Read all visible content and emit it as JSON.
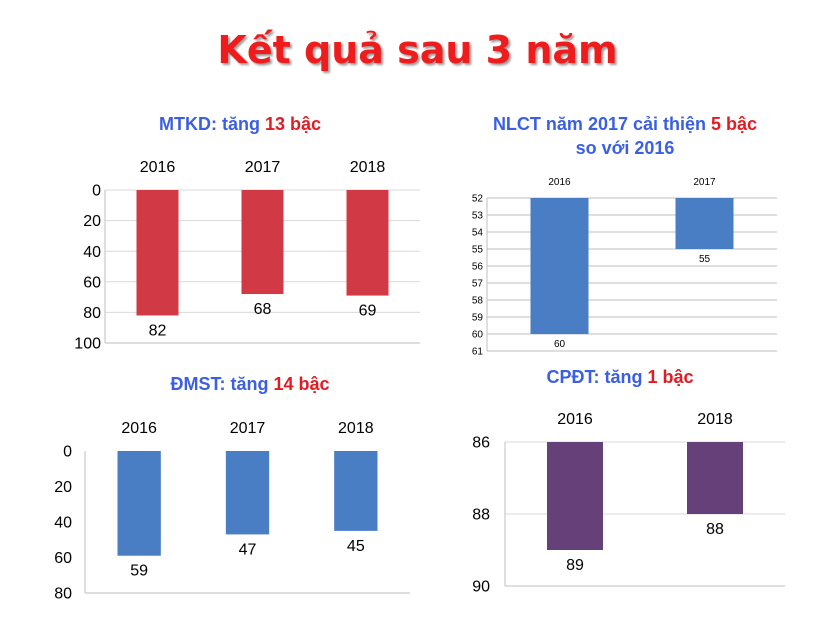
{
  "title": "Kết quả sau 3 năm",
  "panels": {
    "mtkd": {
      "title_prefix": "MTKD: tăng ",
      "title_highlight": "13 bậc",
      "title_suffix": ""
    },
    "nlct": {
      "title_prefix": "NLCT năm 2017 cải thiện ",
      "title_highlight": "5 bậc",
      "title_suffix": " so với 2016"
    },
    "dmst": {
      "title_prefix": "ĐMST: tăng ",
      "title_highlight": "14 bậc",
      "title_suffix": ""
    },
    "cpdt": {
      "title_prefix": "CPĐT: tăng ",
      "title_highlight": "1 bậc",
      "title_suffix": ""
    }
  },
  "chart_data": [
    {
      "type": "bar",
      "title": "MTKD: tăng 13 bậc",
      "categories": [
        "2016",
        "2017",
        "2018"
      ],
      "values": [
        82,
        68,
        69
      ],
      "ylim": [
        0,
        100
      ],
      "yticks": [
        0,
        20,
        40,
        60,
        80,
        100
      ],
      "y_inverted": true,
      "x_axis_position": "top",
      "bar_color": "#d13a45",
      "grid": true
    },
    {
      "type": "bar",
      "title": "NLCT năm 2017 cải thiện 5 bậc so với 2016",
      "categories": [
        "2016",
        "2017"
      ],
      "values": [
        60,
        55
      ],
      "ylim": [
        52,
        61
      ],
      "yticks": [
        52,
        53,
        54,
        55,
        56,
        57,
        58,
        59,
        60,
        61
      ],
      "y_inverted": true,
      "x_axis_position": "top",
      "bar_color": "#4a7ec4",
      "grid": true
    },
    {
      "type": "bar",
      "title": "ĐMST: tăng 14 bậc",
      "categories": [
        "2016",
        "2017",
        "2018"
      ],
      "values": [
        59,
        47,
        45
      ],
      "ylim": [
        0,
        80
      ],
      "yticks": [
        0,
        20,
        40,
        60,
        80
      ],
      "y_inverted": true,
      "x_axis_position": "top",
      "bar_color": "#4a7ec4",
      "grid": false
    },
    {
      "type": "bar",
      "title": "CPĐT: tăng 1 bậc",
      "categories": [
        "2016",
        "2018"
      ],
      "values": [
        89,
        88
      ],
      "ylim": [
        86,
        90
      ],
      "yticks": [
        86,
        88,
        90
      ],
      "y_inverted": true,
      "x_axis_position": "top",
      "bar_color": "#664078",
      "grid": true
    }
  ]
}
